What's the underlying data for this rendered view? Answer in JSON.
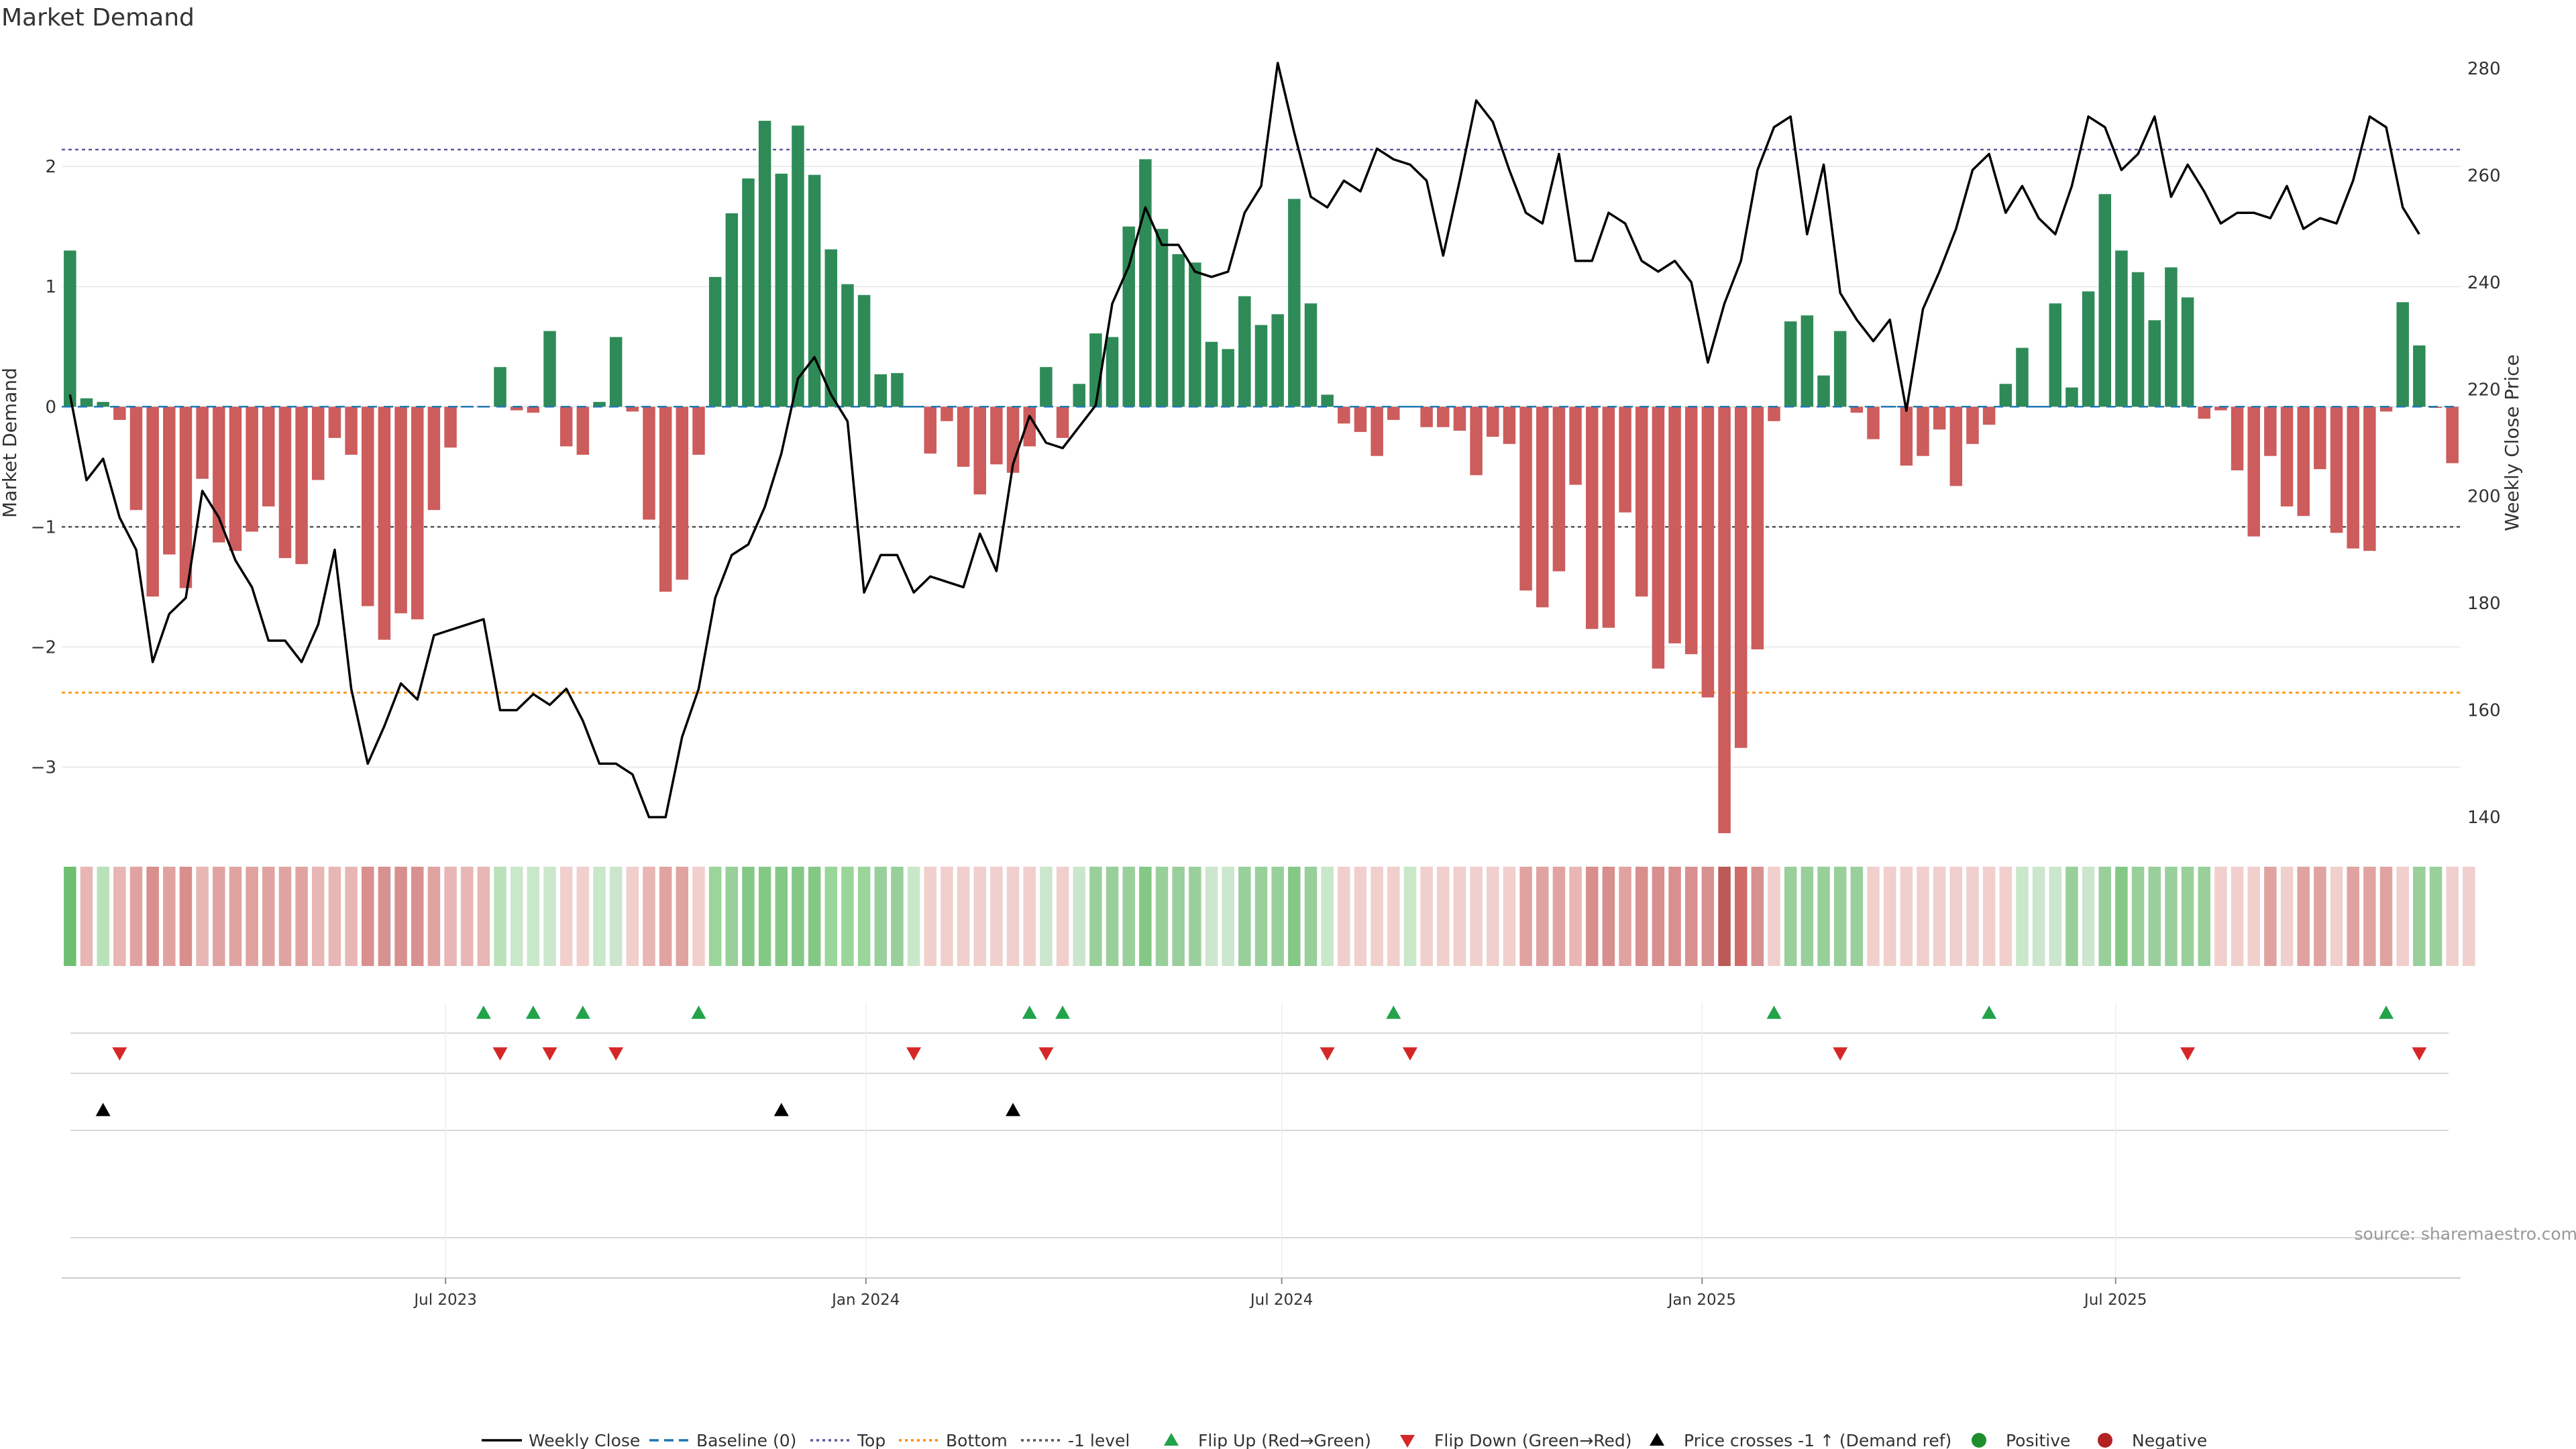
{
  "chart_data": {
    "type": "bar",
    "title": "Market Demand",
    "ylabel": "Market Demand",
    "y2label": "Weekly Close Price",
    "source": "source: sharemaestro.com",
    "ylim": [
      -3.55,
      2.95
    ],
    "y2lim": [
      137,
      283
    ],
    "yticks": [
      -3,
      -2,
      -1,
      0,
      1,
      2
    ],
    "y2ticks": [
      140,
      160,
      180,
      200,
      220,
      240,
      260,
      280
    ],
    "thresholds": {
      "top": 2.14,
      "bottom": -2.38,
      "minus_one": -1
    },
    "x_start": "2023-01-14",
    "x_end": "2025-11-29",
    "xtick_labels": [
      {
        "label": "Jul 2023",
        "date": "2023-07-01"
      },
      {
        "label": "Jan 2024",
        "date": "2024-01-01"
      },
      {
        "label": "Jul 2024",
        "date": "2024-07-01"
      },
      {
        "label": "Jan 2025",
        "date": "2025-01-01"
      },
      {
        "label": "Jul 2025",
        "date": "2025-07-01"
      }
    ],
    "series": [
      {
        "name": "Market Demand",
        "values": [
          1.3,
          0.07,
          0.04,
          -0.11,
          -0.86,
          -1.58,
          -1.23,
          -1.51,
          -0.6,
          -1.13,
          -1.2,
          -1.04,
          -0.83,
          -1.26,
          -1.31,
          -0.61,
          -0.26,
          -0.4,
          -1.66,
          -1.94,
          -1.72,
          -1.77,
          -0.86,
          -0.34,
          0,
          0,
          0.33,
          -0.03,
          -0.05,
          0.63,
          -0.33,
          -0.4,
          0.04,
          0.58,
          -0.04,
          -0.94,
          -1.54,
          -1.44,
          -0.4,
          1.08,
          1.61,
          1.9,
          2.38,
          1.94,
          2.34,
          1.93,
          1.31,
          1.02,
          0.93,
          0.27,
          0.28,
          0,
          -0.39,
          -0.12,
          -0.5,
          -0.73,
          -0.48,
          -0.55,
          -0.33,
          0.33,
          -0.26,
          0.19,
          0.61,
          0.58,
          1.5,
          2.06,
          1.48,
          1.27,
          1.2,
          0.54,
          0.48,
          0.92,
          0.68,
          0.77,
          1.73,
          0.86,
          0.1,
          -0.14,
          -0.21,
          -0.41,
          -0.11,
          0,
          -0.17,
          -0.17,
          -0.2,
          -0.57,
          -0.25,
          -0.31,
          -1.53,
          -1.67,
          -1.37,
          -0.65,
          -1.85,
          -1.84,
          -0.88,
          -1.58,
          -2.18,
          -1.97,
          -2.06,
          -2.42,
          -3.55,
          -2.84,
          -2.02,
          -0.12,
          0.71,
          0.76,
          0.26,
          0.63,
          -0.05,
          -0.27,
          0,
          -0.49,
          -0.41,
          -0.19,
          -0.66,
          -0.31,
          -0.15,
          0.19,
          0.49,
          0,
          0.86,
          0.16,
          0.96,
          1.77,
          1.3,
          1.12,
          0.72,
          1.16,
          0.91,
          -0.1,
          -0.03,
          -0.53,
          -1.08,
          -0.41,
          -0.83,
          -0.91,
          -0.52,
          -1.05,
          -1.18,
          -1.2,
          -0.04,
          0.87,
          0.51,
          -0.01,
          -0.47
        ]
      },
      {
        "name": "Weekly Close",
        "values": [
          219,
          203,
          207,
          196,
          190,
          169,
          178,
          181,
          201,
          196,
          188,
          183,
          173,
          173,
          169,
          176,
          190,
          164,
          150,
          157,
          165,
          162,
          174,
          175,
          176,
          177,
          160,
          160,
          163,
          161,
          164,
          158,
          150,
          150,
          148,
          140,
          140,
          155,
          164,
          181,
          189,
          191,
          198,
          208,
          222,
          226,
          219,
          214,
          182,
          189,
          189,
          182,
          185,
          184,
          183,
          193,
          186,
          206,
          215,
          210,
          209,
          213,
          217,
          236,
          243,
          254,
          247,
          247,
          242,
          241,
          242,
          253,
          258,
          281,
          268,
          256,
          254,
          259,
          257,
          265,
          263,
          262,
          259,
          245,
          259,
          274,
          270,
          261,
          253,
          251,
          264,
          244,
          244,
          253,
          251,
          244,
          242,
          244,
          240,
          225,
          236,
          244,
          261,
          269,
          271,
          249,
          262,
          238,
          233,
          229,
          233,
          216,
          235,
          242,
          250,
          261,
          264,
          253,
          258,
          252,
          249,
          258,
          271,
          269,
          261,
          264,
          271,
          256,
          262,
          257,
          251,
          253,
          253,
          252,
          258,
          250,
          252,
          251,
          259,
          271,
          269,
          254,
          249
        ]
      }
    ],
    "heat_colors": [
      "#6fbf73",
      "#e8b6b4",
      "#b9e2bb",
      "#e8b6b4",
      "#e0a3a1",
      "#d88f8d",
      "#d79190",
      "#e8b6b4",
      "#d48886",
      "#e8b6b4",
      "#cbe6cc",
      "#c9e7c9",
      "#e2adab",
      "#f0cfcd",
      "#a7d7a9",
      "#9ad59a",
      "#99cf9b",
      "#84c886",
      "#a0d3a0",
      "#d06a68",
      "#bb5a56"
    ],
    "heat_index": [
      0,
      1,
      2,
      3,
      4,
      5,
      4,
      5,
      3,
      4,
      4,
      4,
      4,
      4,
      4,
      3,
      1,
      1,
      5,
      6,
      5,
      6,
      4,
      1,
      1,
      1,
      2,
      11,
      11,
      10,
      13,
      13,
      11,
      10,
      13,
      1,
      4,
      4,
      13,
      15,
      16,
      17,
      17,
      17,
      17,
      17,
      15,
      15,
      15,
      16,
      16,
      11,
      13,
      13,
      13,
      13,
      13,
      13,
      13,
      10,
      13,
      10,
      16,
      16,
      16,
      17,
      16,
      16,
      16,
      10,
      10,
      16,
      16,
      16,
      17,
      16,
      11,
      13,
      13,
      13,
      13,
      11,
      13,
      13,
      13,
      13,
      13,
      13,
      4,
      4,
      4,
      3,
      5,
      5,
      4,
      5,
      5,
      5,
      5,
      6,
      20,
      19,
      6,
      13,
      16,
      16,
      16,
      16,
      16,
      13,
      13,
      13,
      13,
      13,
      13,
      13,
      13,
      13,
      11,
      10,
      10,
      16,
      10,
      16,
      17,
      16,
      16,
      16,
      16,
      16,
      13,
      13,
      13,
      4,
      13,
      4,
      4,
      13,
      4,
      4,
      4,
      13,
      16,
      16,
      13,
      13
    ],
    "flip_up_idx": [
      25,
      28,
      31,
      38,
      58,
      60,
      80,
      103,
      116,
      140
    ],
    "flip_down_idx": [
      3,
      26,
      29,
      33,
      51,
      59,
      76,
      81,
      107,
      128,
      142
    ],
    "cross_idx": [
      2,
      43,
      57
    ],
    "legend": [
      "Weekly Close",
      "Baseline (0)",
      "Top",
      "Bottom",
      "-1 level",
      "Flip Up (Red→Green)",
      "Flip Down (Green→Red)",
      "Price crosses -1 ↑ (Demand ref)",
      "Positive",
      "Negative"
    ],
    "colors": {
      "positive": "#2e8b57",
      "negative": "#cd5c5c",
      "price": "#000000",
      "baseline": "#1f77b4",
      "top": "#5a5aa0",
      "bottom": "#ff8c00",
      "minus_one": "#555555",
      "flip_up": "#22a34a",
      "flip_down": "#d62728",
      "cross": "#000000",
      "positive_dot": "#1e8f2e",
      "negative_dot": "#b22222",
      "grid": "#e6e6e6"
    }
  }
}
